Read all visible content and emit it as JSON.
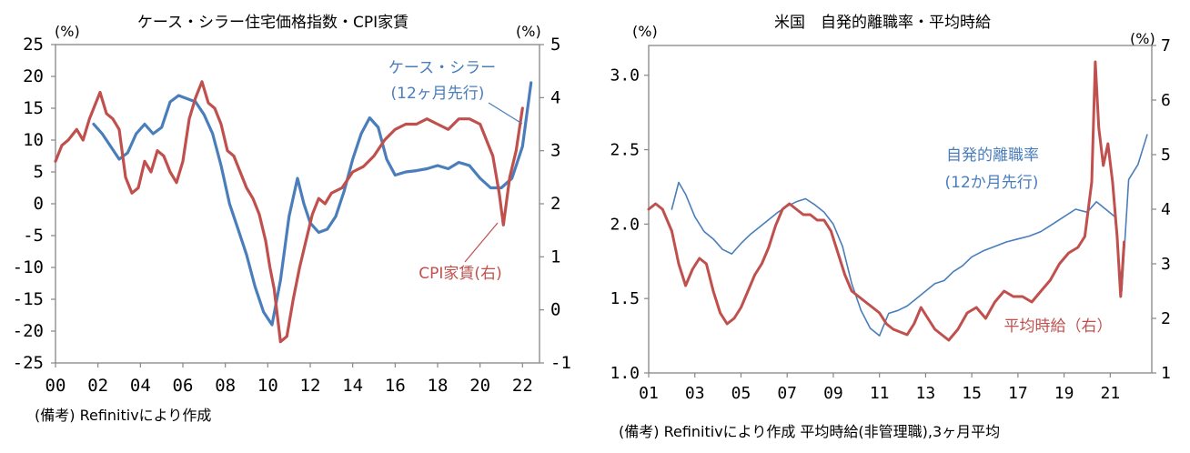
{
  "chart_data": [
    {
      "type": "line",
      "title": "ケース・シラー住宅価格指数・CPI家賃",
      "left_unit": "(%)",
      "right_unit": "(%)",
      "ylim_left": [
        -25,
        25
      ],
      "ylim_right": [
        -1,
        5
      ],
      "left_ticks": [
        "25",
        "20",
        "15",
        "10",
        "5",
        "0",
        "-5",
        "-10",
        "-15",
        "-20",
        "-25"
      ],
      "right_ticks": [
        "5",
        "4",
        "3",
        "2",
        "1",
        "0",
        "-1"
      ],
      "x_ticks": [
        "00",
        "02",
        "04",
        "06",
        "08",
        "10",
        "12",
        "14",
        "16",
        "18",
        "20",
        "22"
      ],
      "xlim": [
        2000,
        2022.8
      ],
      "note": "(備考) Refinitivにより作成",
      "series": [
        {
          "name": "ケース・シラー",
          "sub": "(12ヶ月先行)",
          "axis": "left",
          "color": "#4a7ebb",
          "x": [
            2001.8,
            2002.2,
            2002.6,
            2003.0,
            2003.4,
            2003.8,
            2004.2,
            2004.6,
            2005.0,
            2005.4,
            2005.8,
            2006.2,
            2006.6,
            2007.0,
            2007.4,
            2007.8,
            2008.2,
            2008.6,
            2009.0,
            2009.4,
            2009.8,
            2010.2,
            2010.6,
            2011.0,
            2011.4,
            2011.7,
            2012.0,
            2012.4,
            2012.8,
            2013.2,
            2013.6,
            2014.0,
            2014.4,
            2014.8,
            2015.2,
            2015.6,
            2016.0,
            2016.5,
            2017.0,
            2017.5,
            2018.0,
            2018.5,
            2019.0,
            2019.5,
            2020.0,
            2020.5,
            2021.0,
            2021.5,
            2022.0,
            2022.4
          ],
          "y": [
            12.5,
            11,
            9,
            7,
            8,
            11,
            12.5,
            11,
            12,
            16,
            17,
            16.5,
            16,
            14,
            11,
            6,
            0,
            -4,
            -8,
            -13,
            -17,
            -19,
            -12,
            -2,
            4,
            0,
            -3,
            -4.5,
            -4,
            -2,
            2,
            7,
            11,
            13.5,
            12,
            7,
            4.5,
            5,
            5.2,
            5.5,
            6,
            5.5,
            6.5,
            6,
            4,
            2.5,
            2.5,
            4,
            9,
            19
          ]
        },
        {
          "name": "CPI家賃(右)",
          "axis": "right",
          "color": "#c0504d",
          "x": [
            2000.0,
            2000.3,
            2000.6,
            2001.0,
            2001.3,
            2001.6,
            2001.9,
            2002.1,
            2002.4,
            2002.7,
            2003.0,
            2003.3,
            2003.6,
            2003.9,
            2004.2,
            2004.5,
            2004.8,
            2005.1,
            2005.4,
            2005.7,
            2006.0,
            2006.3,
            2006.6,
            2006.9,
            2007.2,
            2007.5,
            2007.8,
            2008.1,
            2008.4,
            2008.7,
            2009.0,
            2009.3,
            2009.6,
            2009.9,
            2010.1,
            2010.3,
            2010.6,
            2010.9,
            2011.2,
            2011.5,
            2011.8,
            2012.1,
            2012.4,
            2012.7,
            2013.0,
            2013.5,
            2014.0,
            2014.5,
            2015.0,
            2015.5,
            2016.0,
            2016.5,
            2017.0,
            2017.5,
            2018.0,
            2018.5,
            2019.0,
            2019.5,
            2020.0,
            2020.3,
            2020.6,
            2020.9,
            2021.1,
            2021.4,
            2021.7,
            2022.0
          ],
          "y": [
            2.8,
            3.1,
            3.2,
            3.4,
            3.2,
            3.6,
            3.9,
            4.1,
            3.7,
            3.6,
            3.4,
            2.5,
            2.2,
            2.3,
            2.8,
            2.6,
            3.0,
            2.9,
            2.6,
            2.4,
            2.8,
            3.6,
            4.0,
            4.3,
            3.9,
            3.8,
            3.5,
            3.0,
            2.9,
            2.6,
            2.3,
            2.1,
            1.8,
            1.3,
            0.8,
            0.4,
            -0.6,
            -0.5,
            0.2,
            0.8,
            1.3,
            1.8,
            2.1,
            2.0,
            2.2,
            2.3,
            2.6,
            2.7,
            2.9,
            3.2,
            3.4,
            3.5,
            3.5,
            3.6,
            3.5,
            3.4,
            3.6,
            3.6,
            3.5,
            3.2,
            2.9,
            2.2,
            1.6,
            2.5,
            3.0,
            3.8
          ]
        }
      ]
    },
    {
      "type": "line",
      "title": "米国　自発的離職率・平均時給",
      "left_unit": "(%)",
      "right_unit": "(%)",
      "ylim_left": [
        1.0,
        3.2
      ],
      "ylim_right": [
        1,
        7
      ],
      "left_ticks": [
        "3.0",
        "2.5",
        "2.0",
        "1.5",
        "1.0"
      ],
      "right_ticks": [
        "7",
        "6",
        "5",
        "4",
        "3",
        "2",
        "1"
      ],
      "x_ticks": [
        "01",
        "03",
        "05",
        "07",
        "09",
        "11",
        "13",
        "15",
        "17",
        "19",
        "21"
      ],
      "xlim": [
        2001,
        2022.8
      ],
      "note": "(備考) Refinitivにより作成 平均時給(非管理職),3ヶ月平均",
      "series": [
        {
          "name": "自発的離職率",
          "sub": "(12か月先行)",
          "axis": "left",
          "color": "#4a7ebb",
          "x": [
            2002.0,
            2002.3,
            2002.6,
            2003.0,
            2003.4,
            2003.8,
            2004.2,
            2004.6,
            2005.0,
            2005.4,
            2005.8,
            2006.2,
            2006.6,
            2007.0,
            2007.4,
            2007.8,
            2008.2,
            2008.6,
            2009.0,
            2009.4,
            2009.8,
            2010.2,
            2010.6,
            2011.0,
            2011.4,
            2011.8,
            2012.2,
            2012.6,
            2013.0,
            2013.4,
            2013.8,
            2014.2,
            2014.6,
            2015.0,
            2015.5,
            2016.0,
            2016.5,
            2017.0,
            2017.5,
            2018.0,
            2018.5,
            2019.0,
            2019.5,
            2020.0,
            2020.4,
            2020.8,
            2021.2,
            2021.5,
            2021.8,
            2022.2,
            2022.6
          ],
          "y": [
            2.1,
            2.28,
            2.2,
            2.05,
            1.95,
            1.9,
            1.83,
            1.8,
            1.87,
            1.93,
            1.98,
            2.03,
            2.08,
            2.12,
            2.15,
            2.17,
            2.13,
            2.08,
            2.0,
            1.85,
            1.6,
            1.42,
            1.3,
            1.25,
            1.4,
            1.42,
            1.45,
            1.5,
            1.55,
            1.6,
            1.62,
            1.68,
            1.72,
            1.78,
            1.82,
            1.85,
            1.88,
            1.9,
            1.92,
            1.95,
            2.0,
            2.05,
            2.1,
            2.08,
            2.15,
            2.1,
            2.05,
            1.55,
            2.3,
            2.4,
            2.6
          ]
        },
        {
          "name": "平均時給（右）",
          "axis": "right",
          "color": "#c0504d",
          "x": [
            2001.0,
            2001.3,
            2001.6,
            2002.0,
            2002.3,
            2002.6,
            2002.9,
            2003.2,
            2003.5,
            2003.8,
            2004.1,
            2004.4,
            2004.7,
            2005.0,
            2005.3,
            2005.6,
            2005.9,
            2006.2,
            2006.5,
            2006.8,
            2007.1,
            2007.4,
            2007.7,
            2008.0,
            2008.3,
            2008.6,
            2008.9,
            2009.2,
            2009.5,
            2009.8,
            2010.1,
            2010.4,
            2010.7,
            2011.0,
            2011.3,
            2011.6,
            2011.9,
            2012.2,
            2012.5,
            2012.8,
            2013.1,
            2013.4,
            2013.7,
            2014.0,
            2014.4,
            2014.8,
            2015.2,
            2015.6,
            2016.0,
            2016.4,
            2016.8,
            2017.2,
            2017.6,
            2018.0,
            2018.4,
            2018.8,
            2019.2,
            2019.6,
            2019.9,
            2020.2,
            2020.35,
            2020.5,
            2020.7,
            2020.9,
            2021.1,
            2021.3,
            2021.45,
            2021.6
          ],
          "y": [
            4.0,
            4.1,
            4.0,
            3.6,
            3.0,
            2.6,
            2.9,
            3.1,
            3.0,
            2.5,
            2.1,
            1.9,
            2.0,
            2.2,
            2.5,
            2.8,
            3.0,
            3.3,
            3.7,
            4.0,
            4.1,
            4.0,
            3.9,
            3.9,
            3.8,
            3.8,
            3.6,
            3.2,
            2.8,
            2.5,
            2.4,
            2.3,
            2.2,
            2.1,
            1.9,
            1.8,
            1.75,
            1.7,
            1.9,
            2.2,
            2.0,
            1.8,
            1.7,
            1.6,
            1.8,
            2.1,
            2.2,
            2.0,
            2.3,
            2.5,
            2.4,
            2.4,
            2.3,
            2.5,
            2.7,
            3.0,
            3.2,
            3.3,
            3.5,
            4.5,
            6.7,
            5.5,
            4.8,
            5.2,
            4.5,
            3.5,
            2.4,
            3.4
          ]
        }
      ]
    }
  ]
}
